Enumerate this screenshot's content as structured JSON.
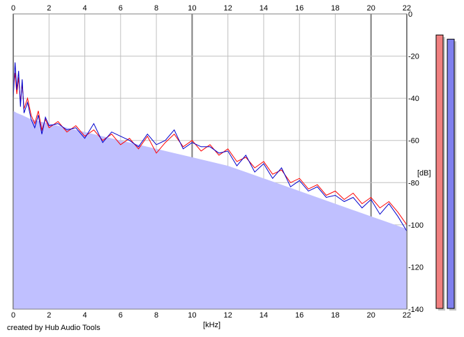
{
  "credit": "created by Hub Audio Tools",
  "chart_data": {
    "type": "line",
    "title": "",
    "xlabel": "[kHz]",
    "ylabel": "[dB]",
    "xlim": [
      0,
      22
    ],
    "ylim": [
      -140,
      0
    ],
    "x_ticks": [
      "0",
      "2",
      "4",
      "6",
      "8",
      "10",
      "12",
      "14",
      "16",
      "18",
      "20",
      "22"
    ],
    "y_ticks": [
      "0",
      "-20",
      "-40",
      "-60",
      "-80",
      "-100",
      "-120",
      "-140"
    ],
    "grid": true,
    "colors": {
      "fill": "#c0c0ff",
      "grid": "#c0c0c0",
      "grid_major": "#808080",
      "red_series": "#ff0000",
      "blue_series": "#0000cc",
      "meter_left": "#f08080",
      "meter_right": "#8080ee"
    },
    "fill_envelope": {
      "x": [
        0,
        0.2,
        0.5,
        1,
        2,
        3,
        4,
        5,
        6,
        7,
        8,
        9,
        10,
        11,
        12,
        13,
        14,
        15,
        16,
        17,
        18,
        19,
        20,
        21,
        22
      ],
      "y": [
        -46,
        -47,
        -48,
        -50,
        -52,
        -54,
        -56,
        -58,
        -60,
        -62,
        -64,
        -66,
        -68,
        -70,
        -72,
        -75,
        -78,
        -81,
        -84,
        -87,
        -90,
        -93,
        -96,
        -99,
        -102
      ]
    },
    "series": [
      {
        "color": "red",
        "x": [
          0,
          0.1,
          0.2,
          0.3,
          0.4,
          0.5,
          0.6,
          0.8,
          1,
          1.2,
          1.4,
          1.6,
          1.8,
          2,
          2.5,
          3,
          3.5,
          4,
          4.5,
          5,
          5.5,
          6,
          6.5,
          7,
          7.5,
          8,
          8.5,
          9,
          9.5,
          10,
          10.5,
          11,
          11.5,
          12,
          12.5,
          13,
          13.5,
          14,
          14.5,
          15,
          15.5,
          16,
          16.5,
          17,
          17.5,
          18,
          18.5,
          19,
          19.5,
          20,
          20.5,
          21,
          21.5,
          22
        ],
        "y": [
          -35,
          -28,
          -38,
          -30,
          -42,
          -33,
          -45,
          -40,
          -48,
          -52,
          -46,
          -55,
          -50,
          -54,
          -51,
          -56,
          -53,
          -58,
          -55,
          -60,
          -57,
          -62,
          -59,
          -64,
          -58,
          -66,
          -61,
          -57,
          -63,
          -60,
          -65,
          -62,
          -67,
          -64,
          -70,
          -68,
          -73,
          -70,
          -76,
          -74,
          -80,
          -78,
          -83,
          -81,
          -86,
          -84,
          -88,
          -85,
          -90,
          -87,
          -92,
          -89,
          -94,
          -100
        ]
      },
      {
        "color": "blue",
        "x": [
          0,
          0.1,
          0.2,
          0.3,
          0.4,
          0.5,
          0.6,
          0.8,
          1,
          1.2,
          1.4,
          1.6,
          1.8,
          2,
          2.5,
          3,
          3.5,
          4,
          4.5,
          5,
          5.5,
          6,
          6.5,
          7,
          7.5,
          8,
          8.5,
          9,
          9.5,
          10,
          10.5,
          11,
          11.5,
          12,
          12.5,
          13,
          13.5,
          14,
          14.5,
          15,
          15.5,
          16,
          16.5,
          17,
          17.5,
          18,
          18.5,
          19,
          19.5,
          20,
          20.5,
          21,
          21.5,
          22
        ],
        "y": [
          -40,
          -23,
          -36,
          -27,
          -44,
          -31,
          -47,
          -42,
          -50,
          -54,
          -48,
          -57,
          -49,
          -53,
          -52,
          -55,
          -54,
          -59,
          -52,
          -61,
          -56,
          -58,
          -60,
          -63,
          -57,
          -62,
          -60,
          -55,
          -64,
          -61,
          -63,
          -63,
          -66,
          -65,
          -72,
          -67,
          -75,
          -71,
          -78,
          -73,
          -82,
          -79,
          -84,
          -82,
          -87,
          -86,
          -89,
          -87,
          -92,
          -88,
          -95,
          -90,
          -96,
          -103
        ]
      }
    ],
    "meters": [
      {
        "color": "red",
        "level_db": -10
      },
      {
        "color": "blue",
        "level_db": -12
      }
    ]
  }
}
